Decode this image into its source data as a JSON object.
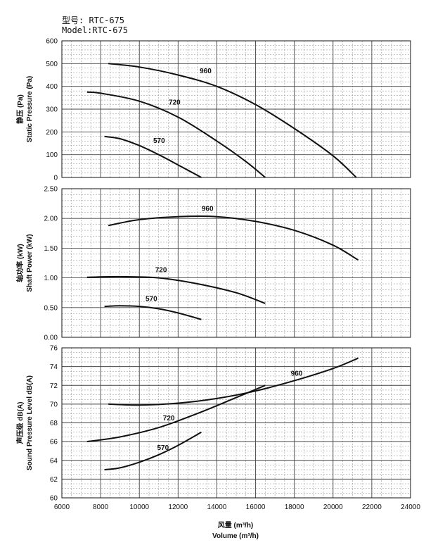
{
  "header": {
    "model_cn": "型号: RTC-675",
    "model_en": "Model:RTC-675"
  },
  "x_axis": {
    "label_cn": "风量 (m³/h)",
    "label_en": "Volume (m³/h)",
    "ticks": [
      "6000",
      "8000",
      "10000",
      "12000",
      "14000",
      "16000",
      "18000",
      "20000",
      "22000",
      "24000"
    ]
  },
  "chart_data": [
    {
      "type": "line",
      "ylabel_cn": "静压 (Pa)",
      "ylabel_en": "Static Pressure (Pa)",
      "xlim": [
        6000,
        24000
      ],
      "ylim": [
        0,
        600
      ],
      "yticks": [
        "0",
        "100",
        "200",
        "300",
        "400",
        "500",
        "600"
      ],
      "series": [
        {
          "name": "960",
          "x": [
            8400,
            10000,
            12000,
            14000,
            16000,
            18000,
            20000,
            21200
          ],
          "y": [
            500,
            485,
            450,
            400,
            320,
            215,
            95,
            0
          ]
        },
        {
          "name": "720",
          "x": [
            7300,
            8000,
            10000,
            12000,
            14000,
            15500,
            16500
          ],
          "y": [
            375,
            370,
            335,
            265,
            160,
            70,
            0
          ]
        },
        {
          "name": "570",
          "x": [
            8200,
            9000,
            10000,
            11000,
            12000,
            13200
          ],
          "y": [
            180,
            170,
            140,
            100,
            55,
            0
          ]
        }
      ]
    },
    {
      "type": "line",
      "ylabel_cn": "轴功率 (kW)",
      "ylabel_en": "Shaft Power (kW)",
      "xlim": [
        6000,
        24000
      ],
      "ylim": [
        0,
        2.5
      ],
      "yticks": [
        "0.00",
        "0.50",
        "1.00",
        "1.50",
        "2.00",
        "2.50"
      ],
      "series": [
        {
          "name": "960",
          "x": [
            8400,
            10000,
            12000,
            14000,
            16000,
            18000,
            20000,
            21300
          ],
          "y": [
            1.88,
            1.98,
            2.03,
            2.03,
            1.95,
            1.8,
            1.55,
            1.3
          ]
        },
        {
          "name": "720",
          "x": [
            7300,
            9000,
            11000,
            13000,
            15000,
            16500
          ],
          "y": [
            1.01,
            1.02,
            1.0,
            0.9,
            0.75,
            0.57
          ]
        },
        {
          "name": "570",
          "x": [
            8200,
            9000,
            10000,
            11000,
            12000,
            13200
          ],
          "y": [
            0.52,
            0.53,
            0.52,
            0.48,
            0.41,
            0.3
          ]
        }
      ]
    },
    {
      "type": "line",
      "ylabel_cn": "声压级 dB(A)",
      "ylabel_en": "Sound Pressure Level dB(A)",
      "xlim": [
        6000,
        24000
      ],
      "ylim": [
        60,
        76
      ],
      "yticks": [
        "60",
        "62",
        "64",
        "66",
        "68",
        "70",
        "72",
        "74",
        "76"
      ],
      "series": [
        {
          "name": "960",
          "x": [
            8400,
            10000,
            12000,
            14000,
            16000,
            18000,
            20000,
            21300
          ],
          "y": [
            70.0,
            69.9,
            70.1,
            70.6,
            71.4,
            72.5,
            73.8,
            74.9
          ]
        },
        {
          "name": "720",
          "x": [
            7300,
            9000,
            11000,
            13000,
            15000,
            16500
          ],
          "y": [
            66.0,
            66.5,
            67.5,
            69.0,
            70.7,
            72.0
          ]
        },
        {
          "name": "570",
          "x": [
            8200,
            9000,
            10000,
            11000,
            12000,
            13200
          ],
          "y": [
            63.0,
            63.2,
            63.8,
            64.6,
            65.6,
            67.0
          ]
        }
      ]
    }
  ]
}
